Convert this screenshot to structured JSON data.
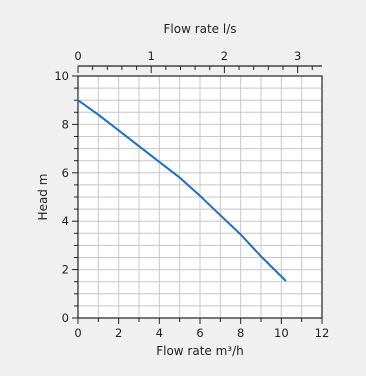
{
  "chart_data": {
    "type": "line",
    "xlabel": "Flow rate m³/h",
    "ylabel": "Head m",
    "secondary_xlabel": "Flow rate l/s",
    "xlim": [
      0,
      12
    ],
    "ylim": [
      0,
      10
    ],
    "secondary_xlim": [
      0,
      3.333
    ],
    "x_ticks": [
      "0",
      "2",
      "4",
      "6",
      "8",
      "10",
      "12"
    ],
    "y_ticks": [
      "0",
      "2",
      "4",
      "6",
      "8",
      "10"
    ],
    "secondary_x_ticks": [
      "0",
      "1",
      "2",
      "3"
    ],
    "grid": true,
    "series": [
      {
        "color": "#1f6fc0",
        "x": [
          0,
          1,
          2,
          3,
          4,
          5,
          6,
          7,
          8,
          9,
          10.2
        ],
        "y": [
          9.0,
          8.4,
          7.75,
          7.1,
          6.45,
          5.8,
          5.05,
          4.25,
          3.45,
          2.55,
          1.55
        ]
      }
    ],
    "colors": {
      "background": "#f0f0f0",
      "plot_background": "#ffffff",
      "grid": "#c8c8c8",
      "axis": "#222222"
    }
  }
}
